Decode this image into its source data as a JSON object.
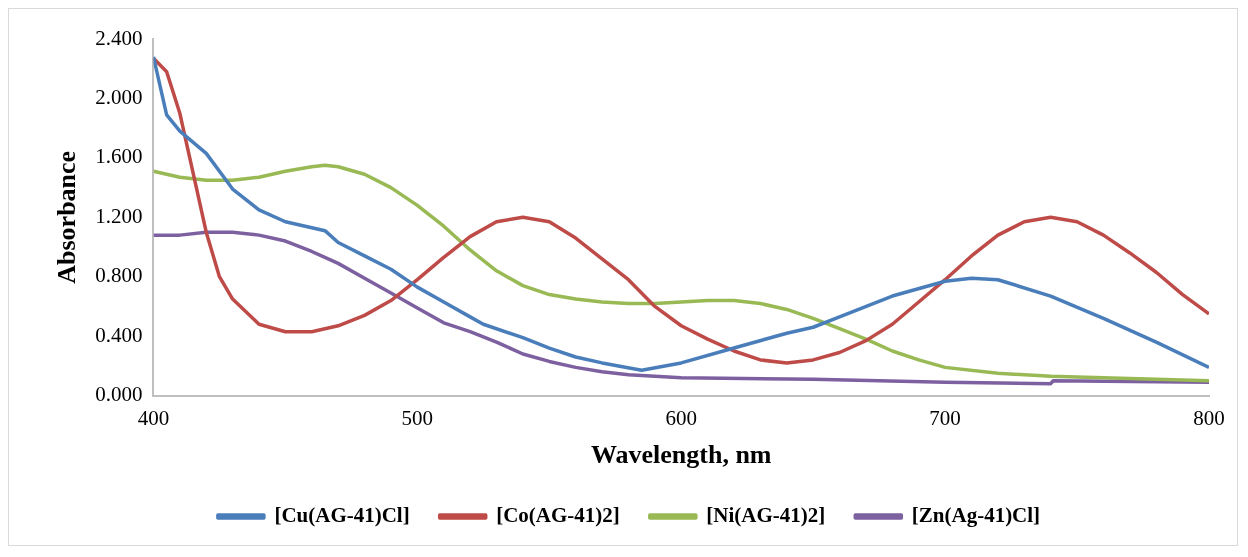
{
  "chart_data": {
    "type": "line",
    "xlabel": "Wavelength, nm",
    "ylabel": "Absorbance",
    "xlim": [
      400,
      800
    ],
    "xticks": [
      400,
      500,
      600,
      700,
      800
    ],
    "ylim": [
      0,
      2.4
    ],
    "yticks": [
      {
        "value": 0,
        "label": "0.000"
      },
      {
        "value": 0.4,
        "label": "0.400"
      },
      {
        "value": 0.8,
        "label": "0.800"
      },
      {
        "value": 1.2,
        "label": "1.200"
      },
      {
        "value": 1.6,
        "label": "1.600"
      },
      {
        "value": 2,
        "label": "2.000"
      },
      {
        "value": 2.4,
        "label": "2.400"
      }
    ],
    "grid": false,
    "legend": "bottom",
    "marker": "none",
    "line_style": "solid",
    "series": [
      {
        "name": "[Cu(AG-41)Cl]",
        "color": "#4a7ebb",
        "x": [
          400,
          405,
          410,
          420,
          430,
          440,
          450,
          460,
          465,
          470,
          480,
          490,
          500,
          510,
          520,
          525,
          540,
          550,
          560,
          570,
          585,
          600,
          620,
          640,
          650,
          660,
          680,
          700,
          710,
          720,
          740,
          760,
          780,
          800
        ],
        "values": [
          2.28,
          1.89,
          1.78,
          1.63,
          1.39,
          1.25,
          1.17,
          1.13,
          1.11,
          1.03,
          0.94,
          0.85,
          0.73,
          0.63,
          0.53,
          0.48,
          0.39,
          0.32,
          0.26,
          0.22,
          0.17,
          0.22,
          0.32,
          0.42,
          0.46,
          0.53,
          0.67,
          0.77,
          0.79,
          0.78,
          0.67,
          0.52,
          0.36,
          0.19
        ]
      },
      {
        "name": "[Co(AG-41)2]",
        "color": "#be4b48",
        "x": [
          400,
          405,
          410,
          415,
          420,
          425,
          430,
          440,
          450,
          460,
          470,
          480,
          490,
          500,
          510,
          520,
          530,
          540,
          550,
          560,
          570,
          580,
          590,
          600,
          610,
          620,
          630,
          640,
          650,
          660,
          670,
          680,
          690,
          700,
          710,
          720,
          730,
          740,
          750,
          760,
          770,
          780,
          790,
          800
        ],
        "values": [
          2.27,
          2.18,
          1.9,
          1.5,
          1.1,
          0.8,
          0.65,
          0.48,
          0.43,
          0.43,
          0.47,
          0.54,
          0.64,
          0.78,
          0.93,
          1.07,
          1.17,
          1.2,
          1.17,
          1.06,
          0.92,
          0.78,
          0.6,
          0.47,
          0.38,
          0.3,
          0.24,
          0.22,
          0.24,
          0.29,
          0.37,
          0.48,
          0.63,
          0.78,
          0.94,
          1.08,
          1.17,
          1.2,
          1.17,
          1.08,
          0.96,
          0.83,
          0.68,
          0.55
        ]
      },
      {
        "name": "[Ni(AG-41)2]",
        "color": "#98b954",
        "x": [
          400,
          410,
          420,
          430,
          440,
          450,
          460,
          465,
          470,
          480,
          490,
          500,
          510,
          520,
          530,
          540,
          550,
          560,
          570,
          580,
          590,
          600,
          610,
          620,
          630,
          640,
          650,
          660,
          670,
          680,
          690,
          700,
          720,
          740,
          760,
          780,
          800
        ],
        "values": [
          1.51,
          1.47,
          1.45,
          1.45,
          1.47,
          1.51,
          1.54,
          1.55,
          1.54,
          1.49,
          1.4,
          1.28,
          1.14,
          0.98,
          0.84,
          0.74,
          0.68,
          0.65,
          0.63,
          0.62,
          0.62,
          0.63,
          0.64,
          0.64,
          0.62,
          0.58,
          0.52,
          0.45,
          0.38,
          0.3,
          0.24,
          0.19,
          0.15,
          0.13,
          0.12,
          0.11,
          0.1
        ]
      },
      {
        "name": "[Zn(Ag-41)Cl]",
        "color": "#7d60a0",
        "x": [
          400,
          410,
          420,
          430,
          440,
          450,
          460,
          470,
          480,
          490,
          500,
          510,
          520,
          530,
          540,
          550,
          560,
          570,
          580,
          600,
          650,
          700,
          740,
          741,
          800
        ],
        "values": [
          1.08,
          1.08,
          1.1,
          1.1,
          1.08,
          1.04,
          0.97,
          0.89,
          0.79,
          0.69,
          0.59,
          0.49,
          0.43,
          0.36,
          0.28,
          0.23,
          0.19,
          0.16,
          0.14,
          0.12,
          0.11,
          0.09,
          0.08,
          0.1,
          0.09
        ]
      }
    ]
  }
}
